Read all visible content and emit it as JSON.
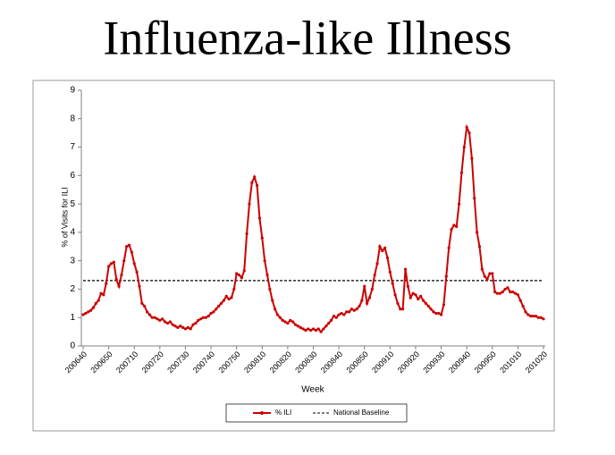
{
  "chart_data": {
    "type": "line",
    "title": "Influenza-like Illness",
    "x_label": "Week",
    "y_label": "% of Visits for ILI",
    "categories": [
      "200640",
      null,
      null,
      null,
      null,
      null,
      null,
      null,
      null,
      null,
      "200650",
      null,
      null,
      null,
      null,
      null,
      null,
      null,
      null,
      null,
      "200710",
      null,
      null,
      null,
      null,
      null,
      null,
      null,
      null,
      null,
      "200720",
      null,
      null,
      null,
      null,
      null,
      null,
      null,
      null,
      null,
      "200730",
      null,
      null,
      null,
      null,
      null,
      null,
      null,
      null,
      null,
      "200740",
      null,
      null,
      null,
      null,
      null,
      null,
      null,
      null,
      null,
      "200750",
      null,
      null,
      null,
      null,
      null,
      null,
      null,
      null,
      null,
      "200810",
      null,
      null,
      null,
      null,
      null,
      null,
      null,
      null,
      null,
      "200820",
      null,
      null,
      null,
      null,
      null,
      null,
      null,
      null,
      null,
      "200830",
      null,
      null,
      null,
      null,
      null,
      null,
      null,
      null,
      null,
      "200840",
      null,
      null,
      null,
      null,
      null,
      null,
      null,
      null,
      null,
      "200850",
      null,
      null,
      null,
      null,
      null,
      null,
      null,
      null,
      null,
      "200910",
      null,
      null,
      null,
      null,
      null,
      null,
      null,
      null,
      null,
      "200920",
      null,
      null,
      null,
      null,
      null,
      null,
      null,
      null,
      null,
      "200930",
      null,
      null,
      null,
      null,
      null,
      null,
      null,
      null,
      null,
      "200940",
      null,
      null,
      null,
      null,
      null,
      null,
      null,
      null,
      null,
      "200950",
      null,
      null,
      null,
      null,
      null,
      null,
      null,
      null,
      null,
      "201010",
      null,
      null,
      null,
      null,
      null,
      null,
      null,
      null,
      null,
      "201020"
    ],
    "series": [
      {
        "name": "% ILI",
        "color": "#cc0000",
        "values": [
          1.1,
          1.15,
          1.2,
          1.25,
          1.35,
          1.5,
          1.6,
          1.85,
          1.8,
          2.2,
          2.8,
          2.9,
          2.95,
          2.35,
          2.1,
          2.5,
          3.0,
          3.5,
          3.55,
          3.3,
          2.9,
          2.6,
          2.1,
          1.5,
          1.4,
          1.2,
          1.1,
          1.0,
          1.0,
          0.95,
          0.9,
          0.95,
          0.85,
          0.8,
          0.85,
          0.75,
          0.7,
          0.65,
          0.7,
          0.65,
          0.6,
          0.65,
          0.6,
          0.75,
          0.8,
          0.9,
          0.95,
          1.0,
          1.0,
          1.05,
          1.15,
          1.2,
          1.3,
          1.4,
          1.5,
          1.6,
          1.75,
          1.65,
          1.7,
          2.0,
          2.55,
          2.5,
          2.4,
          2.65,
          3.95,
          5.0,
          5.75,
          5.95,
          5.65,
          4.5,
          3.8,
          3.0,
          2.5,
          2.0,
          1.6,
          1.3,
          1.1,
          1.0,
          0.9,
          0.85,
          0.8,
          0.9,
          0.85,
          0.75,
          0.7,
          0.65,
          0.6,
          0.55,
          0.6,
          0.55,
          0.6,
          0.55,
          0.6,
          0.5,
          0.6,
          0.7,
          0.8,
          0.9,
          1.05,
          1.0,
          1.1,
          1.15,
          1.1,
          1.2,
          1.2,
          1.3,
          1.25,
          1.3,
          1.4,
          1.6,
          2.1,
          1.5,
          1.7,
          2.0,
          2.5,
          2.9,
          3.5,
          3.35,
          3.45,
          3.1,
          2.6,
          2.2,
          1.8,
          1.5,
          1.3,
          1.3,
          2.7,
          2.1,
          1.7,
          1.85,
          1.8,
          1.65,
          1.75,
          1.6,
          1.5,
          1.4,
          1.3,
          1.2,
          1.15,
          1.15,
          1.1,
          1.45,
          2.45,
          3.45,
          4.1,
          4.25,
          4.2,
          5.0,
          6.1,
          7.0,
          7.7,
          7.5,
          6.6,
          5.2,
          4.0,
          3.5,
          2.7,
          2.45,
          2.35,
          2.55,
          2.55,
          1.9,
          1.85,
          1.85,
          1.9,
          2.0,
          2.05,
          1.9,
          1.9,
          1.85,
          1.8,
          1.6,
          1.4,
          1.2,
          1.1,
          1.05,
          1.05,
          1.05,
          1.0,
          1.0,
          0.95
        ]
      }
    ],
    "reference_line": {
      "name": "National Baseline",
      "value": 2.3,
      "color": "#000000"
    },
    "ylim": [
      0,
      9
    ],
    "yticks": [
      0,
      1,
      2,
      3,
      4,
      5,
      6,
      7,
      8,
      9
    ],
    "legend": "bottom"
  }
}
